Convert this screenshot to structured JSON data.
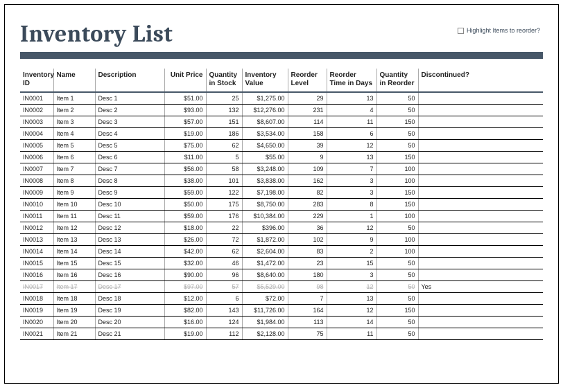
{
  "title": "Inventory List",
  "highlight_label": "Highlight Items to reorder?",
  "columns": {
    "id": "Inventory ID",
    "name": "Name",
    "desc": "Description",
    "unit_price": "Unit Price",
    "qty_stock": "Quantity in Stock",
    "inv_value": "Inventory Value",
    "reorder_level": "Reorder Level",
    "reorder_time": "Reorder Time in Days",
    "qty_reorder": "Quantity in Reorder",
    "discontinued": "Discontinued?"
  },
  "rows": [
    {
      "id": "IN0001",
      "name": "Item 1",
      "desc": "Desc 1",
      "price": "$51.00",
      "qty": "25",
      "value": "$1,275.00",
      "rl": "29",
      "rt": "13",
      "qr": "50",
      "dc": "",
      "discontinued": false
    },
    {
      "id": "IN0002",
      "name": "Item 2",
      "desc": "Desc 2",
      "price": "$93.00",
      "qty": "132",
      "value": "$12,276.00",
      "rl": "231",
      "rt": "4",
      "qr": "50",
      "dc": "",
      "discontinued": false
    },
    {
      "id": "IN0003",
      "name": "Item 3",
      "desc": "Desc 3",
      "price": "$57.00",
      "qty": "151",
      "value": "$8,607.00",
      "rl": "114",
      "rt": "11",
      "qr": "150",
      "dc": "",
      "discontinued": false
    },
    {
      "id": "IN0004",
      "name": "Item 4",
      "desc": "Desc 4",
      "price": "$19.00",
      "qty": "186",
      "value": "$3,534.00",
      "rl": "158",
      "rt": "6",
      "qr": "50",
      "dc": "",
      "discontinued": false
    },
    {
      "id": "IN0005",
      "name": "Item 5",
      "desc": "Desc 5",
      "price": "$75.00",
      "qty": "62",
      "value": "$4,650.00",
      "rl": "39",
      "rt": "12",
      "qr": "50",
      "dc": "",
      "discontinued": false
    },
    {
      "id": "IN0006",
      "name": "Item 6",
      "desc": "Desc 6",
      "price": "$11.00",
      "qty": "5",
      "value": "$55.00",
      "rl": "9",
      "rt": "13",
      "qr": "150",
      "dc": "",
      "discontinued": false
    },
    {
      "id": "IN0007",
      "name": "Item 7",
      "desc": "Desc 7",
      "price": "$56.00",
      "qty": "58",
      "value": "$3,248.00",
      "rl": "109",
      "rt": "7",
      "qr": "100",
      "dc": "",
      "discontinued": false
    },
    {
      "id": "IN0008",
      "name": "Item 8",
      "desc": "Desc 8",
      "price": "$38.00",
      "qty": "101",
      "value": "$3,838.00",
      "rl": "162",
      "rt": "3",
      "qr": "100",
      "dc": "",
      "discontinued": false
    },
    {
      "id": "IN0009",
      "name": "Item 9",
      "desc": "Desc 9",
      "price": "$59.00",
      "qty": "122",
      "value": "$7,198.00",
      "rl": "82",
      "rt": "3",
      "qr": "150",
      "dc": "",
      "discontinued": false
    },
    {
      "id": "IN0010",
      "name": "Item 10",
      "desc": "Desc 10",
      "price": "$50.00",
      "qty": "175",
      "value": "$8,750.00",
      "rl": "283",
      "rt": "8",
      "qr": "150",
      "dc": "",
      "discontinued": false
    },
    {
      "id": "IN0011",
      "name": "Item 11",
      "desc": "Desc 11",
      "price": "$59.00",
      "qty": "176",
      "value": "$10,384.00",
      "rl": "229",
      "rt": "1",
      "qr": "100",
      "dc": "",
      "discontinued": false
    },
    {
      "id": "IN0012",
      "name": "Item 12",
      "desc": "Desc 12",
      "price": "$18.00",
      "qty": "22",
      "value": "$396.00",
      "rl": "36",
      "rt": "12",
      "qr": "50",
      "dc": "",
      "discontinued": false
    },
    {
      "id": "IN0013",
      "name": "Item 13",
      "desc": "Desc 13",
      "price": "$26.00",
      "qty": "72",
      "value": "$1,872.00",
      "rl": "102",
      "rt": "9",
      "qr": "100",
      "dc": "",
      "discontinued": false
    },
    {
      "id": "IN0014",
      "name": "Item 14",
      "desc": "Desc 14",
      "price": "$42.00",
      "qty": "62",
      "value": "$2,604.00",
      "rl": "83",
      "rt": "2",
      "qr": "100",
      "dc": "",
      "discontinued": false
    },
    {
      "id": "IN0015",
      "name": "Item 15",
      "desc": "Desc 15",
      "price": "$32.00",
      "qty": "46",
      "value": "$1,472.00",
      "rl": "23",
      "rt": "15",
      "qr": "50",
      "dc": "",
      "discontinued": false
    },
    {
      "id": "IN0016",
      "name": "Item 16",
      "desc": "Desc 16",
      "price": "$90.00",
      "qty": "96",
      "value": "$8,640.00",
      "rl": "180",
      "rt": "3",
      "qr": "50",
      "dc": "",
      "discontinued": false
    },
    {
      "id": "IN0017",
      "name": "Item 17",
      "desc": "Desc 17",
      "price": "$97.00",
      "qty": "57",
      "value": "$5,529.00",
      "rl": "98",
      "rt": "12",
      "qr": "50",
      "dc": "Yes",
      "discontinued": true
    },
    {
      "id": "IN0018",
      "name": "Item 18",
      "desc": "Desc 18",
      "price": "$12.00",
      "qty": "6",
      "value": "$72.00",
      "rl": "7",
      "rt": "13",
      "qr": "50",
      "dc": "",
      "discontinued": false
    },
    {
      "id": "IN0019",
      "name": "Item 19",
      "desc": "Desc 19",
      "price": "$82.00",
      "qty": "143",
      "value": "$11,726.00",
      "rl": "164",
      "rt": "12",
      "qr": "150",
      "dc": "",
      "discontinued": false
    },
    {
      "id": "IN0020",
      "name": "Item 20",
      "desc": "Desc 20",
      "price": "$16.00",
      "qty": "124",
      "value": "$1,984.00",
      "rl": "113",
      "rt": "14",
      "qr": "50",
      "dc": "",
      "discontinued": false
    },
    {
      "id": "IN0021",
      "name": "Item 21",
      "desc": "Desc 21",
      "price": "$19.00",
      "qty": "112",
      "value": "$2,128.00",
      "rl": "75",
      "rt": "11",
      "qr": "50",
      "dc": "",
      "discontinued": false
    }
  ],
  "style": {
    "title_color": "#3b4a5a",
    "bar_color": "#475768",
    "border_color": "#000000",
    "header_fontsize": 10,
    "cell_fontsize": 9,
    "discontinued_color": "#b0b0b0",
    "background": "#ffffff"
  }
}
